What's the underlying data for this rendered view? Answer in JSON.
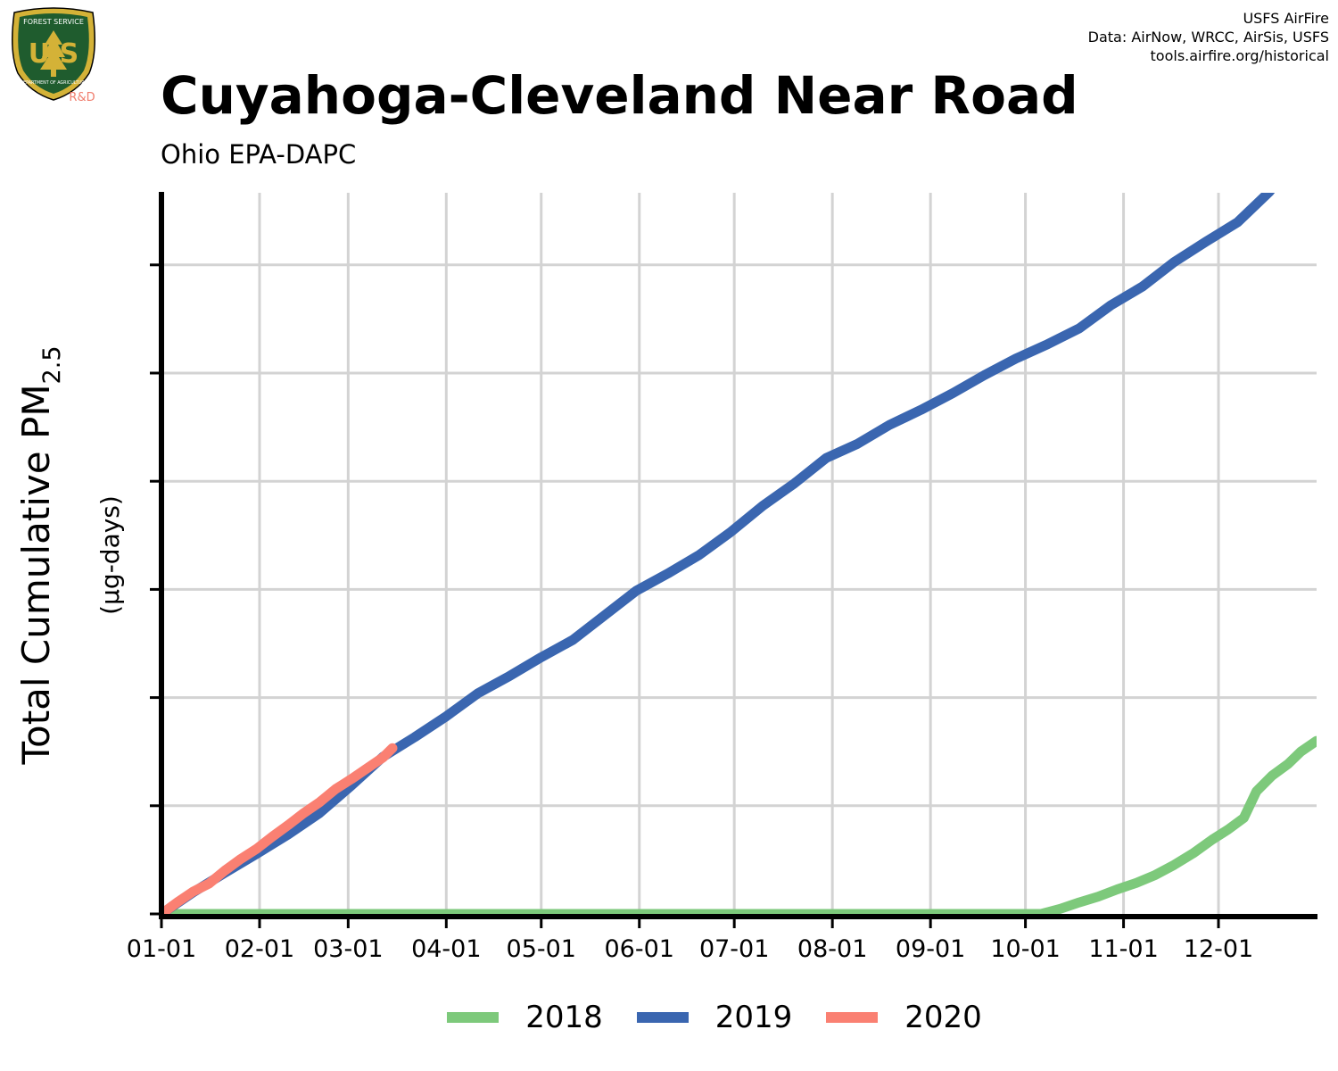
{
  "header": {
    "title": "Cuyahoga-Cleveland Near Road",
    "subtitle": "Ohio EPA-DAPC",
    "credits": [
      "USFS AirFire",
      "Data: AirNow, WRCC, AirSis, USFS",
      "tools.airfire.org/historical"
    ],
    "logo": {
      "arc_text": "FOREST SERVICE",
      "letters": "U S",
      "bottom_text": "DEPARTMENT OF AGRICULTURE",
      "tag": "R&D",
      "icon": "usfs-shield-icon"
    }
  },
  "chart_data": {
    "type": "line",
    "title": "Cuyahoga-Cleveland Near Road",
    "subtitle": "Ohio EPA-DAPC",
    "ylabel": {
      "main": "Total Cumulative PM",
      "sub": "2.5",
      "units": "(µg-days)"
    },
    "x_ticks": [
      "01-01",
      "02-01",
      "03-01",
      "04-01",
      "05-01",
      "06-01",
      "07-01",
      "08-01",
      "09-01",
      "10-01",
      "11-01",
      "12-01"
    ],
    "x_tick_days": [
      0,
      31,
      59,
      90,
      120,
      151,
      181,
      212,
      243,
      273,
      304,
      334
    ],
    "xlim": [
      0,
      365
    ],
    "ylim": [
      0,
      1000
    ],
    "y_gridlines": [
      0,
      150,
      300,
      450,
      600,
      750,
      900
    ],
    "grid": true,
    "legend_position": "bottom",
    "series": [
      {
        "name": "2018",
        "color": "#7DC97B",
        "x": [
          0,
          50,
          100,
          150,
          200,
          250,
          278,
          284,
          290,
          296,
          302,
          308,
          314,
          320,
          326,
          332,
          337,
          342,
          346,
          351,
          356,
          360,
          365
        ],
        "y": [
          0,
          0,
          0,
          0,
          0,
          0,
          0,
          7,
          16,
          24,
          34,
          43,
          54,
          68,
          84,
          103,
          117,
          133,
          170,
          192,
          208,
          225,
          240
        ]
      },
      {
        "name": "2019",
        "color": "#3A66B0",
        "x": [
          0,
          10,
          20,
          30,
          40,
          50,
          60,
          70,
          80,
          90,
          100,
          110,
          120,
          130,
          140,
          150,
          160,
          170,
          180,
          190,
          200,
          210,
          220,
          230,
          240,
          250,
          260,
          270,
          280,
          290,
          300,
          310,
          320,
          330,
          340,
          350,
          358,
          365
        ],
        "y": [
          0,
          30,
          57,
          83,
          110,
          140,
          178,
          218,
          245,
          274,
          306,
          330,
          356,
          380,
          414,
          448,
          472,
          498,
          530,
          566,
          597,
          632,
          652,
          678,
          699,
          722,
          747,
          770,
          790,
          812,
          844,
          870,
          904,
          932,
          959,
          1001,
          1046,
          1082
        ]
      },
      {
        "name": "2020",
        "color": "#FA8072",
        "x": [
          0,
          5,
          10,
          15,
          20,
          25,
          30,
          35,
          40,
          45,
          50,
          55,
          60,
          65,
          70,
          73
        ],
        "y": [
          0,
          16,
          31,
          42,
          60,
          76,
          90,
          107,
          123,
          140,
          155,
          173,
          187,
          202,
          217,
          230
        ]
      }
    ]
  }
}
